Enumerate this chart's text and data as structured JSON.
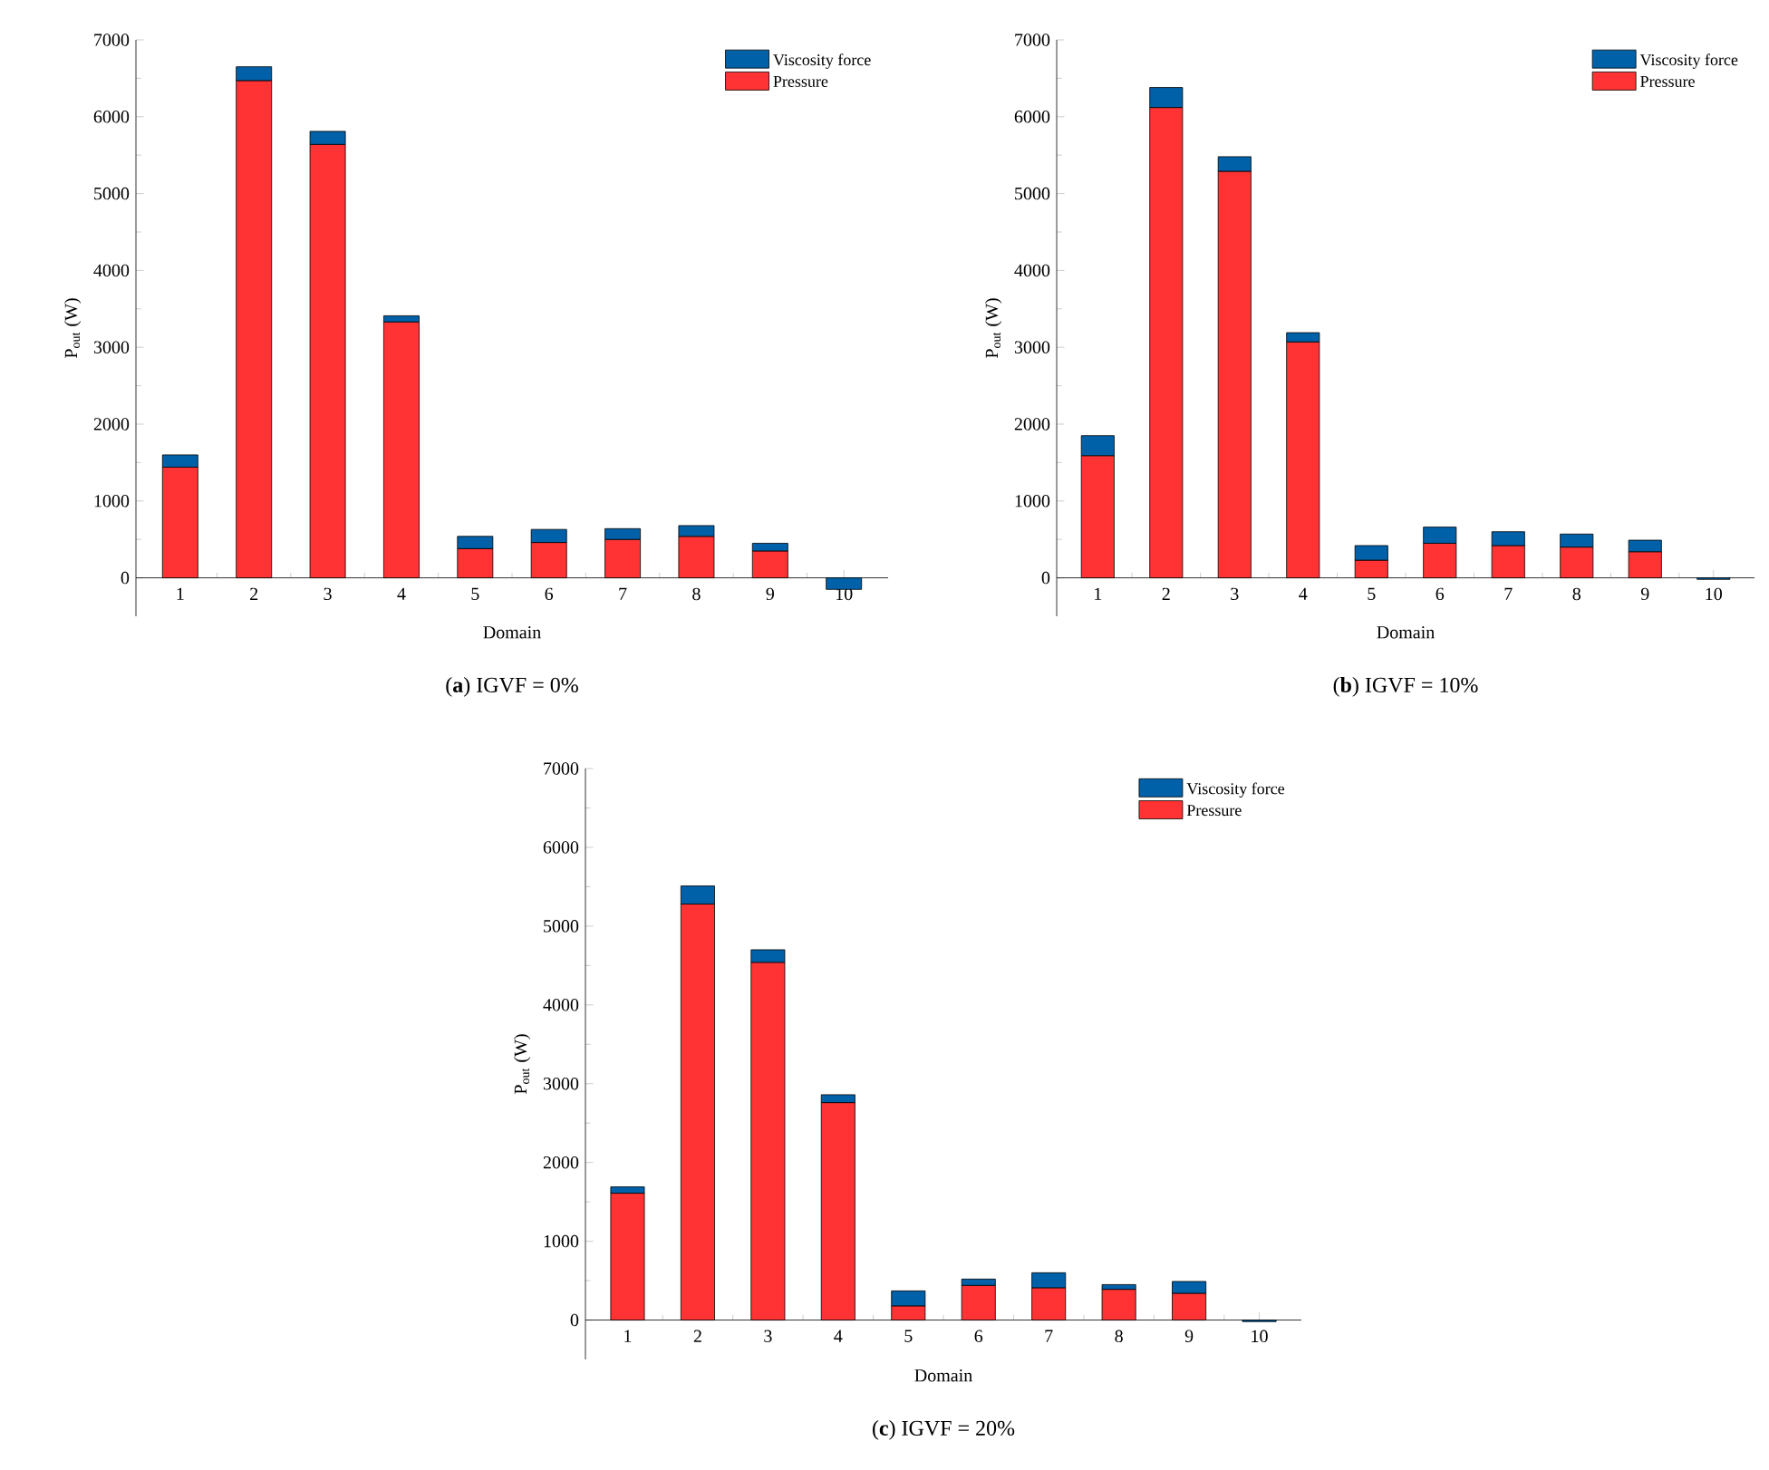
{
  "chart_data": [
    {
      "type": "bar",
      "stacked": true,
      "title": "(**a**) IGVF = 0%",
      "xlabel": "Domain",
      "ylabel": "P$_{out}$ (W)",
      "legend": "top right",
      "categories": [
        "1",
        "2",
        "3",
        "4",
        "5",
        "6",
        "7",
        "8",
        "9",
        "10"
      ],
      "ylim": [
        -500,
        7000
      ],
      "yticks": [
        0,
        1000,
        2000,
        3000,
        4000,
        5000,
        6000,
        7000
      ],
      "series": [
        {
          "name": "Pressure",
          "color": "#ff3333",
          "values": [
            1440,
            6470,
            5640,
            3330,
            380,
            460,
            500,
            540,
            350,
            null
          ]
        },
        {
          "name": "Viscosity force",
          "color": "#0060a8",
          "values": [
            160,
            180,
            170,
            80,
            160,
            170,
            140,
            140,
            100,
            -150
          ]
        }
      ]
    },
    {
      "type": "bar",
      "stacked": true,
      "title": "(**b**) IGVF = 10%",
      "xlabel": "Domain",
      "ylabel": "P$_{out}$ (W)",
      "legend": "top right",
      "categories": [
        "1",
        "2",
        "3",
        "4",
        "5",
        "6",
        "7",
        "8",
        "9",
        "10"
      ],
      "ylim": [
        -500,
        7000
      ],
      "yticks": [
        0,
        1000,
        2000,
        3000,
        4000,
        5000,
        6000,
        7000
      ],
      "series": [
        {
          "name": "Pressure",
          "color": "#ff3333",
          "values": [
            1590,
            6120,
            5290,
            3070,
            230,
            450,
            420,
            400,
            340,
            null
          ]
        },
        {
          "name": "Viscosity force",
          "color": "#0060a8",
          "values": [
            260,
            260,
            190,
            120,
            190,
            210,
            180,
            170,
            150,
            -20
          ]
        }
      ]
    },
    {
      "type": "bar",
      "stacked": true,
      "title": "(**c**) IGVF = 20%",
      "xlabel": "Domain",
      "ylabel": "P$_{out}$ (W)",
      "legend": "top right",
      "categories": [
        "1",
        "2",
        "3",
        "4",
        "5",
        "6",
        "7",
        "8",
        "9",
        "10"
      ],
      "ylim": [
        -500,
        7000
      ],
      "yticks": [
        0,
        1000,
        2000,
        3000,
        4000,
        5000,
        6000,
        7000
      ],
      "series": [
        {
          "name": "Pressure",
          "color": "#ff3333",
          "values": [
            1610,
            5280,
            4540,
            2760,
            180,
            440,
            410,
            390,
            340,
            null
          ]
        },
        {
          "name": "Viscosity force",
          "color": "#0060a8",
          "values": [
            80,
            230,
            160,
            100,
            190,
            80,
            190,
            60,
            150,
            -20
          ]
        }
      ]
    }
  ]
}
